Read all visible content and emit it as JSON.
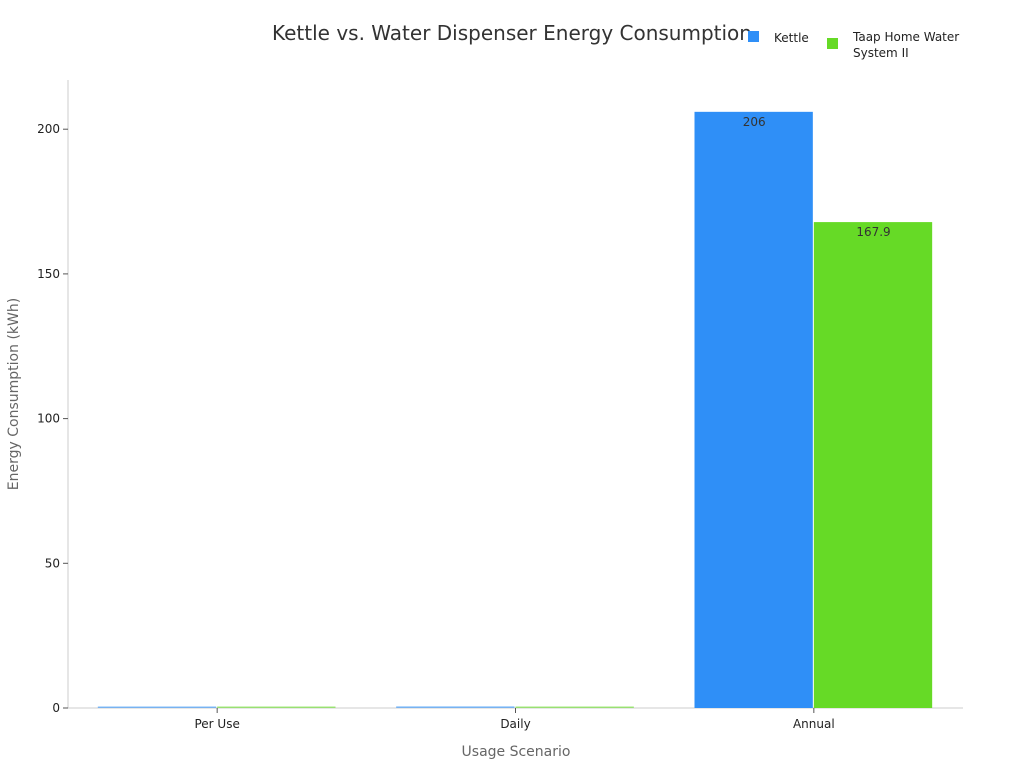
{
  "chart_data": {
    "type": "bar",
    "title": "Kettle vs. Water Dispenser Energy Consumption",
    "xlabel": "Usage Scenario",
    "ylabel": "Energy Consumption (kWh)",
    "categories": [
      "Per Use",
      "Daily",
      "Annual"
    ],
    "ylim": [
      0,
      217
    ],
    "yticks": [
      0,
      50,
      100,
      150,
      200
    ],
    "grid": false,
    "legend_position": "top-right",
    "series": [
      {
        "name": "Kettle",
        "color": "#2f8ff7",
        "values": [
          0.1,
          0.56,
          206
        ],
        "labels": [
          "",
          "",
          "206"
        ],
        "legend_lines": [
          "Kettle"
        ]
      },
      {
        "name": "Taap Home Water System II",
        "color": "#66da26",
        "values": [
          0.04,
          0.46,
          167.9
        ],
        "labels": [
          "",
          "",
          "167.9"
        ],
        "legend_lines": [
          "Taap Home Water",
          "System II"
        ]
      }
    ]
  }
}
